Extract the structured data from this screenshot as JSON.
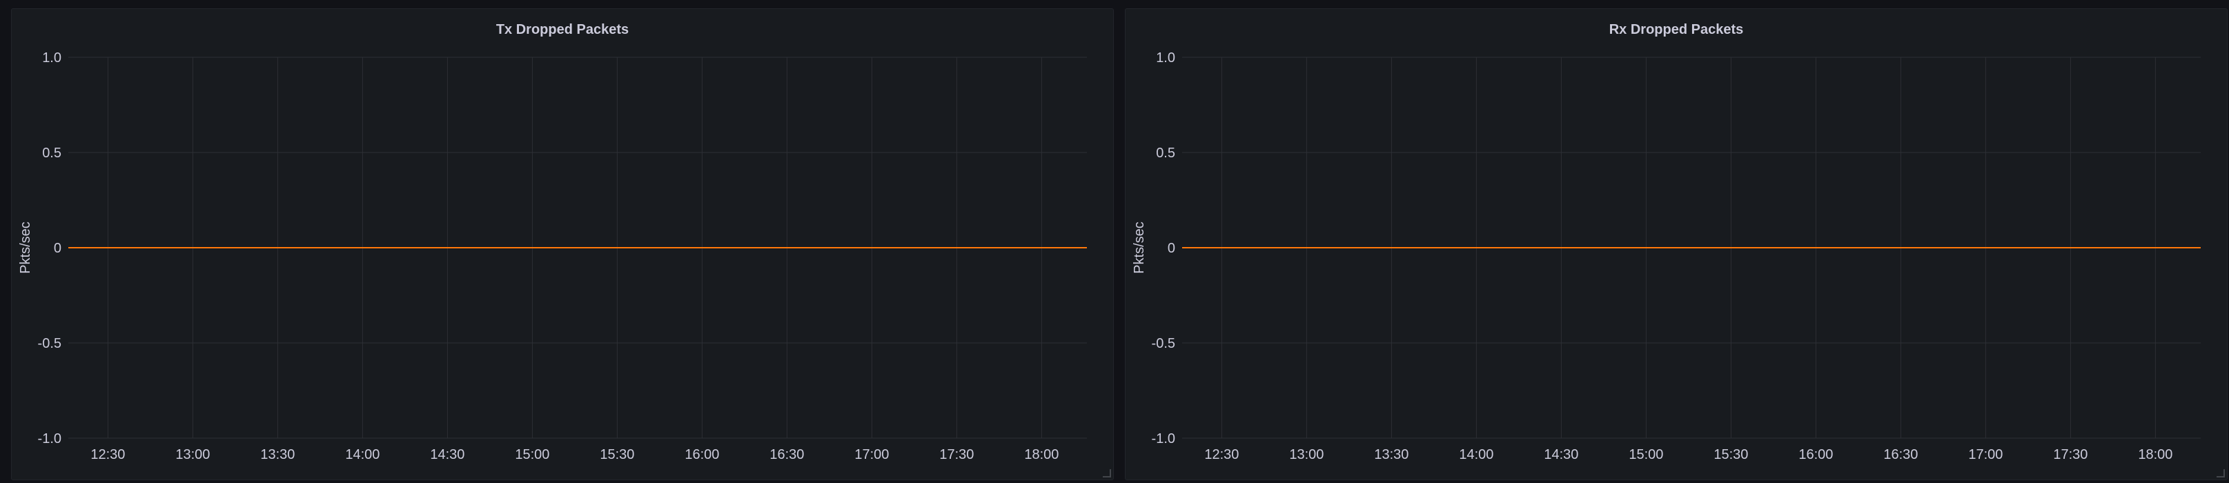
{
  "chart_data": [
    {
      "type": "line",
      "title": "Tx Dropped Packets",
      "xlabel": "",
      "ylabel": "Pkts/sec",
      "ylim": [
        -1.0,
        1.0
      ],
      "y_ticks": [
        "1.0",
        "0.5",
        "0",
        "-0.5",
        "-1.0"
      ],
      "y_tick_values": [
        1.0,
        0.5,
        0,
        -0.5,
        -1.0
      ],
      "x_ticks": [
        "12:30",
        "13:00",
        "13:30",
        "14:00",
        "14:30",
        "15:00",
        "15:30",
        "16:00",
        "16:30",
        "17:00",
        "17:30",
        "18:00"
      ],
      "x_range": [
        "12:16",
        "18:16"
      ],
      "grid": true,
      "series": [
        {
          "color": "#ff780a",
          "x": [
            "12:16",
            "18:16"
          ],
          "values": [
            0,
            0
          ]
        }
      ]
    },
    {
      "type": "line",
      "title": "Rx Dropped Packets",
      "xlabel": "",
      "ylabel": "Pkts/sec",
      "ylim": [
        -1.0,
        1.0
      ],
      "y_ticks": [
        "1.0",
        "0.5",
        "0",
        "-0.5",
        "-1.0"
      ],
      "y_tick_values": [
        1.0,
        0.5,
        0,
        -0.5,
        -1.0
      ],
      "x_ticks": [
        "12:30",
        "13:00",
        "13:30",
        "14:00",
        "14:30",
        "15:00",
        "15:30",
        "16:00",
        "16:30",
        "17:00",
        "17:30",
        "18:00"
      ],
      "x_range": [
        "12:16",
        "18:16"
      ],
      "grid": true,
      "series": [
        {
          "color": "#ff780a",
          "x": [
            "12:16",
            "18:16"
          ],
          "values": [
            0,
            0
          ]
        }
      ]
    }
  ],
  "theme": {
    "panel_bg": "#181b1f",
    "grid_color": "#2c2f35",
    "text_color": "#ccccdc"
  }
}
